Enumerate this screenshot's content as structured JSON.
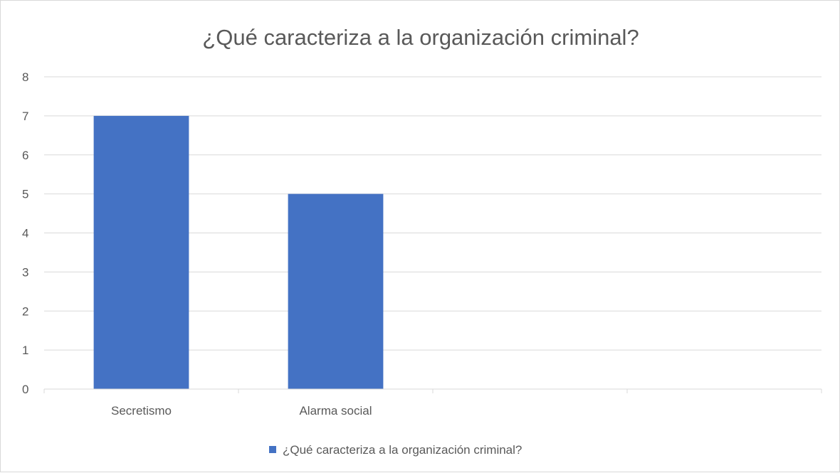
{
  "chart_data": {
    "type": "bar",
    "title": "¿Qué caracteriza a la organización criminal?",
    "categories": [
      "Secretismo",
      "Alarma social",
      "",
      ""
    ],
    "series": [
      {
        "name": "¿Qué caracteriza a la organización criminal?",
        "values": [
          7,
          5,
          null,
          null
        ],
        "color": "#4472c4"
      }
    ],
    "yticks": [
      "0",
      "1",
      "2",
      "3",
      "4",
      "5",
      "6",
      "7",
      "8"
    ],
    "ylim": [
      0,
      8
    ],
    "grid": true,
    "legend_position": "bottom",
    "colors": {
      "bar": "#4472c4",
      "grid": "#d9d9d9",
      "text": "#595959",
      "border": "#d9d9d9"
    }
  }
}
